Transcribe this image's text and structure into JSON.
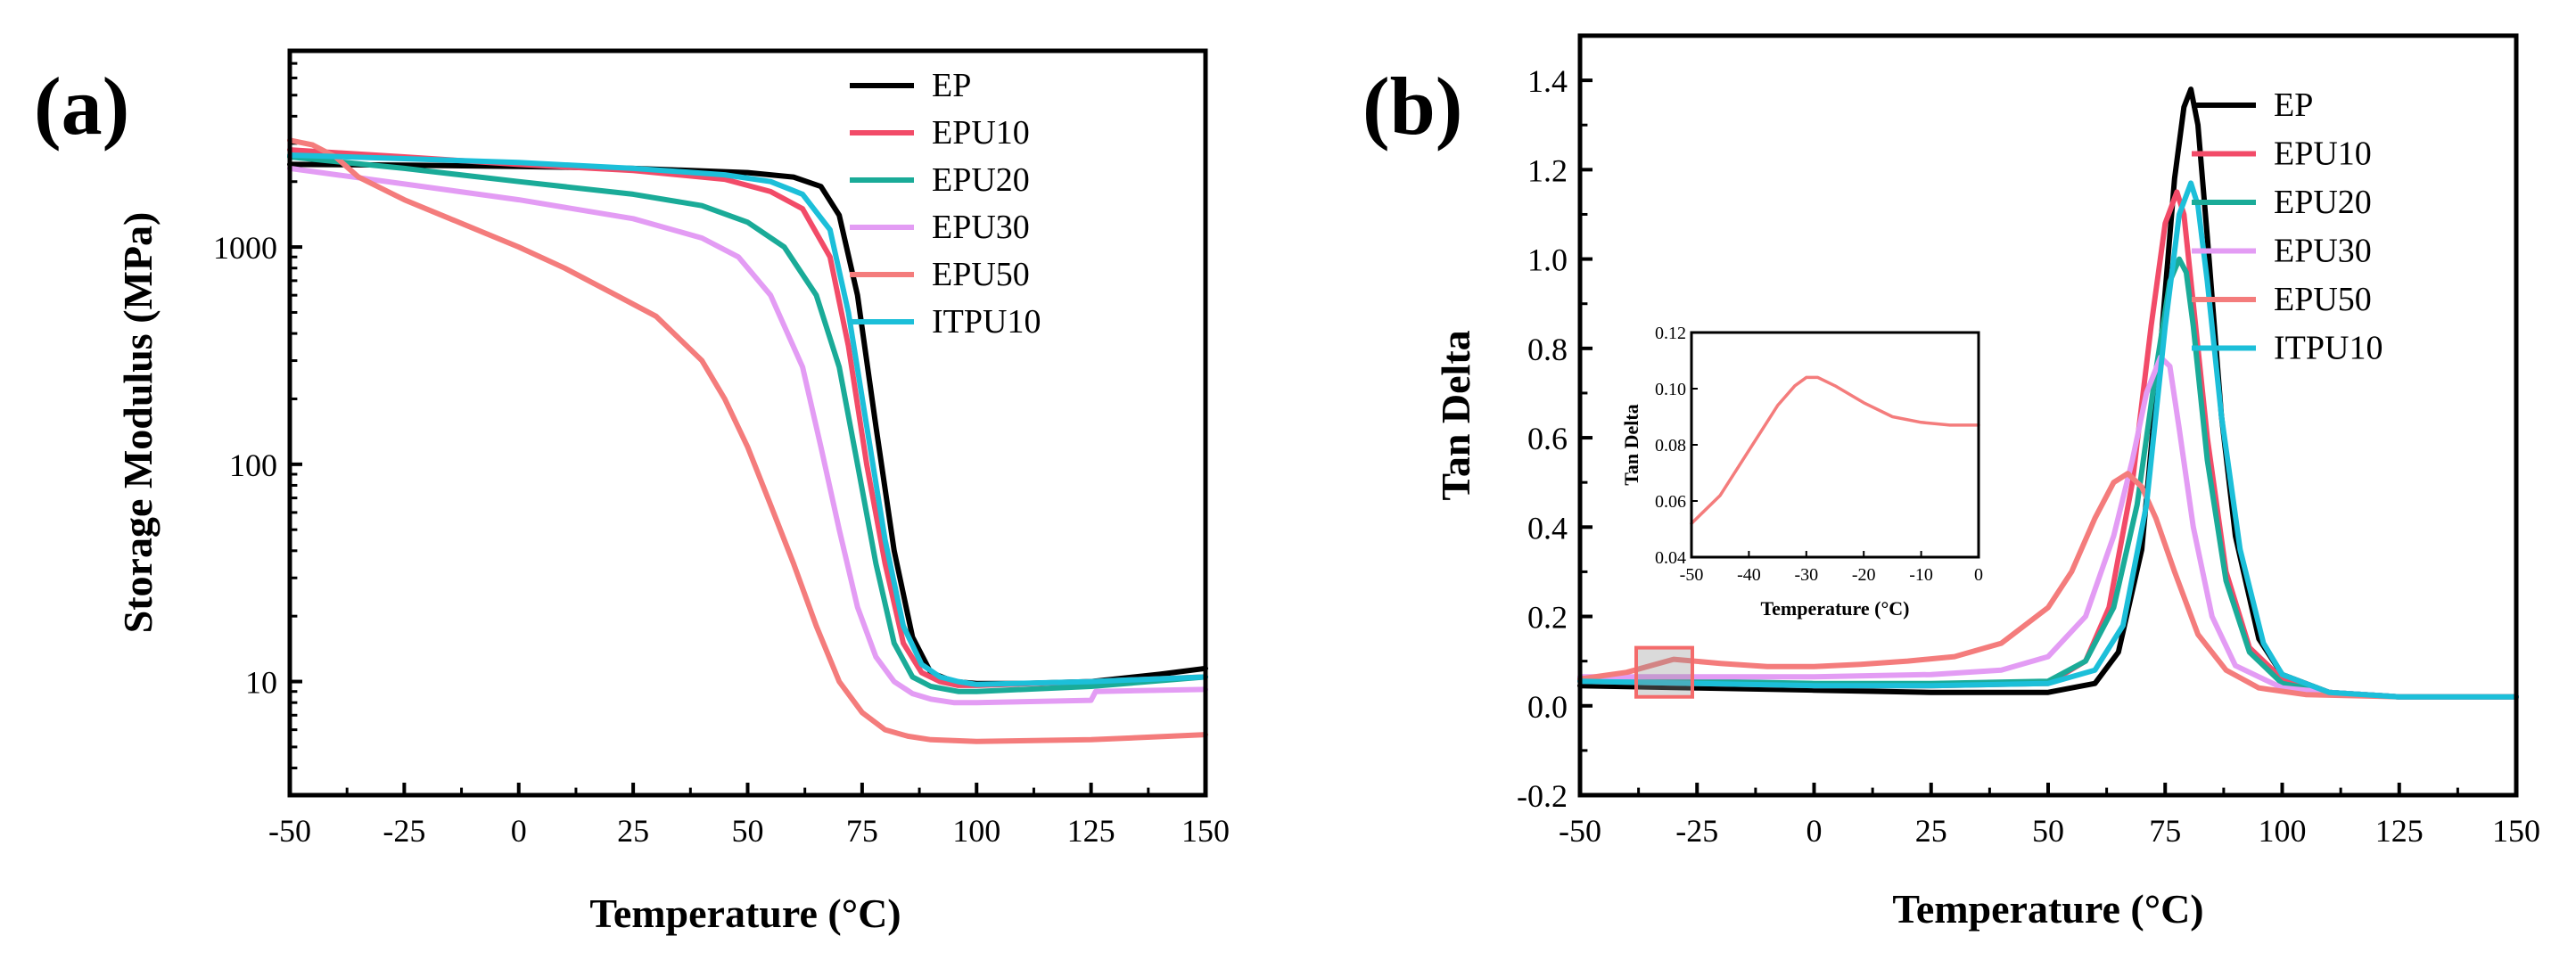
{
  "figure": {
    "panels": [
      "(a)",
      "(b)"
    ]
  },
  "colors": {
    "EP": "#000000",
    "EPU10": "#f24b68",
    "EPU20": "#1aab98",
    "EPU30": "#e39cf4",
    "EPU50": "#f47c7c",
    "ITPU10": "#1cbfd9"
  },
  "chart_data": [
    {
      "type": "line",
      "panel": "(a)",
      "title": "",
      "xlabel": "Temperature (°C)",
      "ylabel": "Storage Modulus (MPa)",
      "yscale": "log",
      "xlim": [
        -50,
        150
      ],
      "ylim": [
        3,
        8000
      ],
      "xticks": [
        -50,
        -25,
        0,
        25,
        50,
        75,
        100,
        125,
        150
      ],
      "xtick_labels": [
        "-50",
        "-25",
        "0",
        "25",
        "50",
        "75",
        "100",
        "125",
        "150"
      ],
      "yticks": [
        10,
        100,
        1000
      ],
      "ytick_labels": [
        "10",
        "100",
        "1000"
      ],
      "legend": {
        "position": "top-right",
        "entries": [
          "EP",
          "EPU10",
          "EPU20",
          "EPU30",
          "EPU50",
          "ITPU10"
        ]
      },
      "series": [
        {
          "name": "EP",
          "x": [
            -50,
            -25,
            0,
            25,
            50,
            60,
            66,
            70,
            74,
            78,
            82,
            86,
            90,
            95,
            100,
            110,
            125,
            140,
            150
          ],
          "y": [
            2400,
            2380,
            2350,
            2300,
            2200,
            2100,
            1900,
            1400,
            600,
            150,
            40,
            16,
            11,
            10,
            9.8,
            9.8,
            10,
            10.8,
            11.5
          ]
        },
        {
          "name": "EPU10",
          "x": [
            -50,
            -25,
            0,
            25,
            45,
            55,
            62,
            68,
            72,
            76,
            80,
            84,
            88,
            92,
            96,
            100,
            125,
            150
          ],
          "y": [
            2800,
            2600,
            2400,
            2250,
            2050,
            1800,
            1500,
            900,
            350,
            100,
            35,
            15,
            11,
            10,
            9.6,
            9.6,
            10,
            10.5
          ]
        },
        {
          "name": "EPU20",
          "x": [
            -50,
            -25,
            0,
            25,
            40,
            50,
            58,
            65,
            70,
            74,
            78,
            82,
            86,
            90,
            96,
            100,
            125,
            150
          ],
          "y": [
            2600,
            2300,
            2000,
            1750,
            1550,
            1300,
            1000,
            600,
            280,
            100,
            35,
            15,
            10.5,
            9.5,
            9,
            9,
            9.5,
            10.5
          ]
        },
        {
          "name": "EPU30",
          "x": [
            -50,
            -25,
            0,
            25,
            40,
            48,
            55,
            62,
            66,
            70,
            74,
            78,
            82,
            86,
            90,
            95,
            100,
            125,
            126,
            150
          ],
          "y": [
            2300,
            1950,
            1650,
            1350,
            1100,
            900,
            600,
            280,
            120,
            50,
            22,
            13,
            10,
            8.8,
            8.3,
            8,
            8,
            8.2,
            9,
            9.2
          ]
        },
        {
          "name": "EPU50",
          "x": [
            -50,
            -45,
            -40,
            -35,
            -25,
            -15,
            0,
            10,
            20,
            30,
            40,
            45,
            50,
            55,
            60,
            65,
            70,
            75,
            80,
            85,
            90,
            100,
            125,
            150
          ],
          "y": [
            3100,
            2950,
            2600,
            2100,
            1650,
            1350,
            1000,
            800,
            620,
            480,
            300,
            200,
            120,
            65,
            35,
            18,
            10,
            7.2,
            6,
            5.6,
            5.4,
            5.3,
            5.4,
            5.7
          ]
        },
        {
          "name": "ITPU10",
          "x": [
            -50,
            -25,
            0,
            25,
            45,
            55,
            62,
            68,
            72,
            76,
            80,
            84,
            88,
            92,
            96,
            100,
            125,
            150
          ],
          "y": [
            2650,
            2550,
            2450,
            2300,
            2150,
            2000,
            1750,
            1200,
            500,
            150,
            45,
            18,
            12,
            10.5,
            10,
            9.7,
            10,
            10.5
          ]
        }
      ]
    },
    {
      "type": "line",
      "panel": "(b)",
      "title": "",
      "xlabel": "Temperature (°C)",
      "ylabel": "Tan Delta",
      "xlim": [
        -50,
        150
      ],
      "ylim": [
        -0.2,
        1.5
      ],
      "xticks": [
        -50,
        -25,
        0,
        25,
        50,
        75,
        100,
        125,
        150
      ],
      "xtick_labels": [
        "-50",
        "-25",
        "0",
        "25",
        "50",
        "75",
        "100",
        "125",
        "150"
      ],
      "yticks": [
        -0.2,
        0.0,
        0.2,
        0.4,
        0.6,
        0.8,
        1.0,
        1.2,
        1.4
      ],
      "ytick_labels": [
        "-0.2",
        "0.0",
        "0.2",
        "0.4",
        "0.6",
        "0.8",
        "1.0",
        "1.2",
        "1.4"
      ],
      "legend": {
        "position": "top-right",
        "entries": [
          "EP",
          "EPU10",
          "EPU20",
          "EPU30",
          "EPU50",
          "ITPU10"
        ]
      },
      "highlight_box": {
        "xrange": [
          -38,
          -26
        ],
        "yrange": [
          0.02,
          0.13
        ]
      },
      "series": [
        {
          "name": "EP",
          "x": [
            -50,
            -25,
            0,
            25,
            50,
            60,
            65,
            70,
            74,
            77,
            79,
            80.5,
            82,
            84,
            87,
            90,
            95,
            100,
            110,
            125,
            150
          ],
          "y": [
            0.045,
            0.04,
            0.035,
            0.03,
            0.03,
            0.05,
            0.12,
            0.35,
            0.8,
            1.18,
            1.34,
            1.38,
            1.3,
            1.05,
            0.65,
            0.38,
            0.15,
            0.07,
            0.03,
            0.02,
            0.02
          ]
        },
        {
          "name": "EPU10",
          "x": [
            -50,
            -25,
            0,
            25,
            50,
            58,
            63,
            68,
            72,
            75,
            77.5,
            79,
            81,
            84,
            88,
            93,
            100,
            110,
            125,
            150
          ],
          "y": [
            0.055,
            0.05,
            0.045,
            0.045,
            0.05,
            0.1,
            0.22,
            0.5,
            0.85,
            1.08,
            1.15,
            1.1,
            0.9,
            0.6,
            0.3,
            0.13,
            0.06,
            0.03,
            0.02,
            0.02
          ]
        },
        {
          "name": "EPU20",
          "x": [
            -50,
            -25,
            0,
            25,
            50,
            58,
            64,
            69,
            73,
            76,
            78,
            79.5,
            81,
            84,
            88,
            93,
            100,
            110,
            125,
            150
          ],
          "y": [
            0.06,
            0.055,
            0.05,
            0.05,
            0.055,
            0.1,
            0.22,
            0.45,
            0.75,
            0.95,
            1.0,
            0.97,
            0.85,
            0.55,
            0.28,
            0.12,
            0.05,
            0.03,
            0.02,
            0.02
          ]
        },
        {
          "name": "EPU30",
          "x": [
            -50,
            -25,
            0,
            25,
            40,
            50,
            58,
            64,
            68,
            71,
            74,
            76,
            78,
            81,
            85,
            90,
            100,
            110,
            125,
            150
          ],
          "y": [
            0.065,
            0.065,
            0.065,
            0.07,
            0.08,
            0.11,
            0.2,
            0.38,
            0.55,
            0.7,
            0.78,
            0.76,
            0.62,
            0.4,
            0.2,
            0.09,
            0.04,
            0.03,
            0.02,
            0.02
          ]
        },
        {
          "name": "EPU50",
          "x": [
            -50,
            -40,
            -30,
            -20,
            -10,
            0,
            10,
            20,
            30,
            40,
            50,
            55,
            60,
            64,
            67,
            70,
            73,
            77,
            82,
            88,
            95,
            105,
            125,
            150
          ],
          "y": [
            0.06,
            0.075,
            0.104,
            0.095,
            0.088,
            0.088,
            0.093,
            0.1,
            0.11,
            0.14,
            0.22,
            0.3,
            0.42,
            0.5,
            0.52,
            0.49,
            0.42,
            0.3,
            0.16,
            0.08,
            0.04,
            0.025,
            0.02,
            0.02
          ]
        },
        {
          "name": "ITPU10",
          "x": [
            -50,
            -25,
            0,
            25,
            50,
            60,
            66,
            71,
            75,
            78,
            80.5,
            82,
            84,
            87,
            91,
            96,
            100,
            110,
            125,
            150
          ],
          "y": [
            0.055,
            0.05,
            0.045,
            0.045,
            0.05,
            0.08,
            0.18,
            0.45,
            0.85,
            1.1,
            1.17,
            1.12,
            0.95,
            0.65,
            0.35,
            0.14,
            0.07,
            0.03,
            0.02,
            0.02
          ]
        }
      ]
    },
    {
      "type": "line",
      "panel": "(b) inset",
      "title": "",
      "xlabel": "Temperature (°C)",
      "ylabel": "Tan Delta",
      "xlim": [
        -50,
        0
      ],
      "ylim": [
        0.04,
        0.12
      ],
      "xticks": [
        -50,
        -40,
        -30,
        -20,
        -10,
        0
      ],
      "xtick_labels": [
        "-50",
        "-40",
        "-30",
        "-20",
        "-10",
        "0"
      ],
      "yticks": [
        0.04,
        0.06,
        0.08,
        0.1,
        0.12
      ],
      "ytick_labels": [
        "0.04",
        "0.06",
        "0.08",
        "0.10",
        "0.12"
      ],
      "series": [
        {
          "name": "EPU50",
          "x": [
            -50,
            -45,
            -40,
            -35,
            -32,
            -30,
            -28,
            -25,
            -20,
            -15,
            -10,
            -5,
            0
          ],
          "y": [
            0.052,
            0.062,
            0.078,
            0.094,
            0.101,
            0.104,
            0.104,
            0.101,
            0.095,
            0.09,
            0.088,
            0.087,
            0.087
          ]
        }
      ]
    }
  ]
}
